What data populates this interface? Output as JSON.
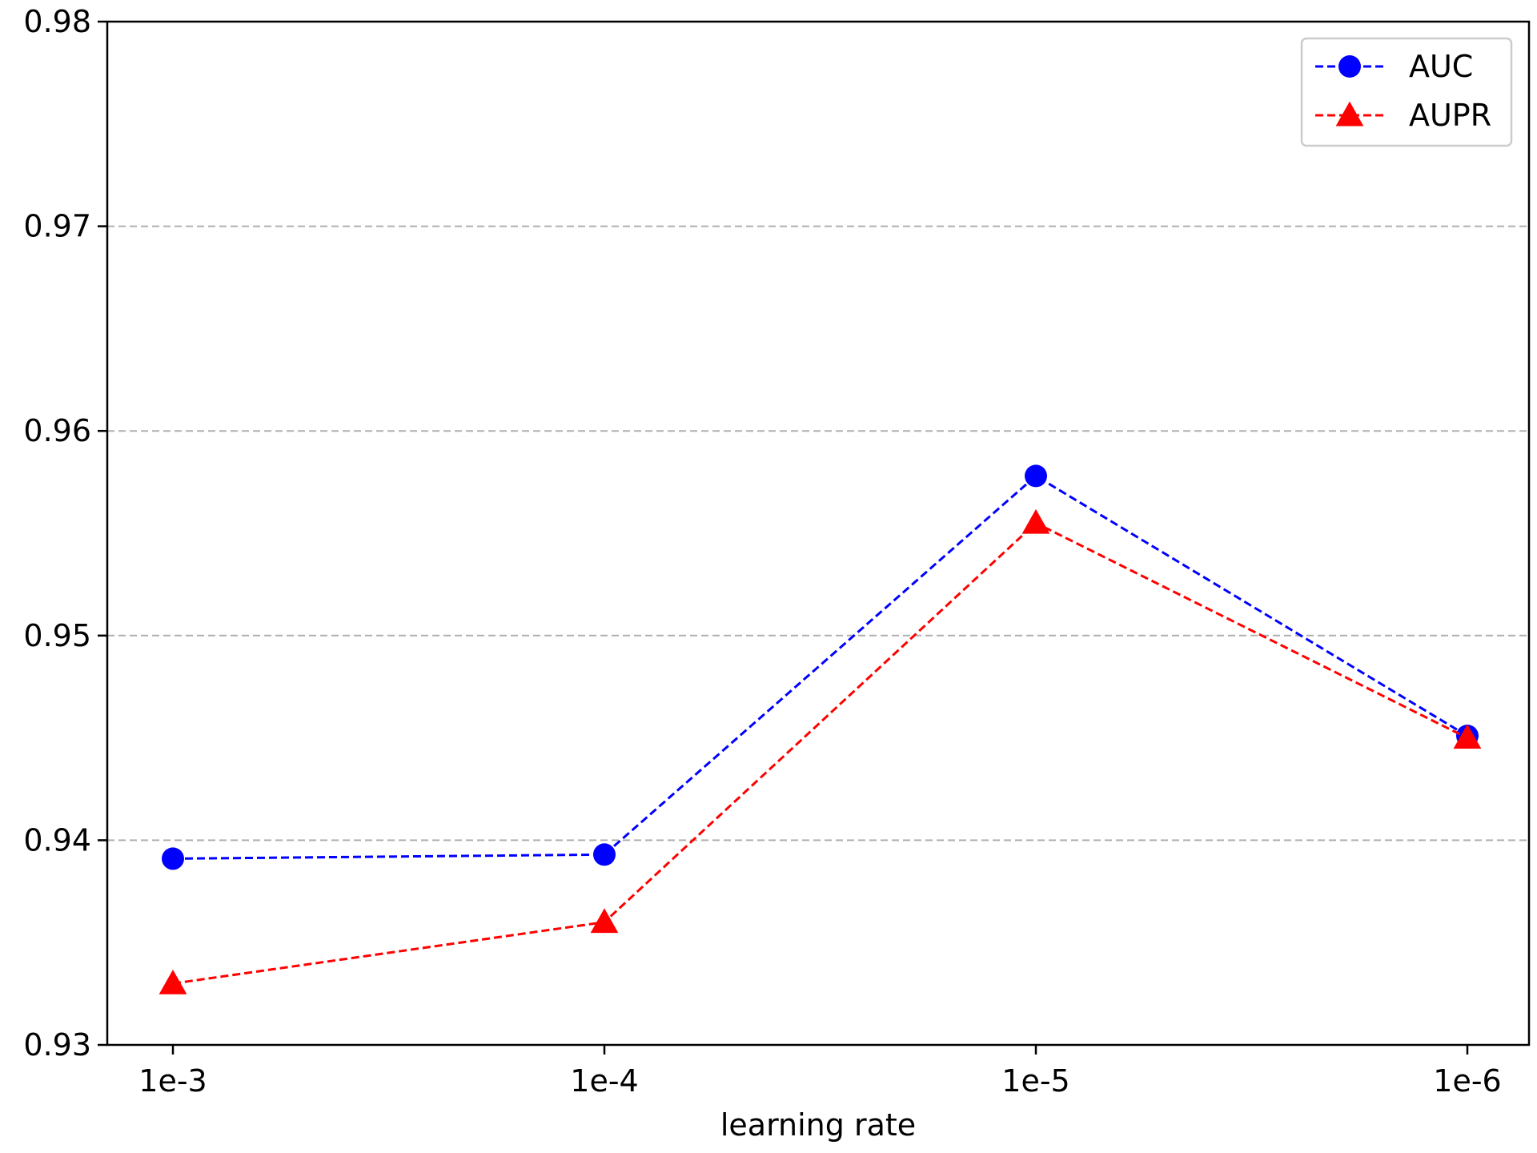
{
  "chart_data": {
    "type": "line",
    "title": "",
    "xlabel": "learning rate",
    "ylabel": "",
    "categories": [
      "1e-3",
      "1e-4",
      "1e-5",
      "1e-6"
    ],
    "ylim": [
      0.93,
      0.98
    ],
    "yticks": [
      "0.93",
      "0.94",
      "0.95",
      "0.96",
      "0.97",
      "0.98"
    ],
    "grid": "y-dashed",
    "legend_position": "top-right",
    "series": [
      {
        "name": "AUC",
        "values": [
          0.9391,
          0.9393,
          0.9578,
          0.9451
        ],
        "color": "#0000ff",
        "marker": "circle"
      },
      {
        "name": "AUPR",
        "values": [
          0.933,
          0.936,
          0.9555,
          0.945
        ],
        "color": "#ff0000",
        "marker": "triangle"
      }
    ]
  }
}
